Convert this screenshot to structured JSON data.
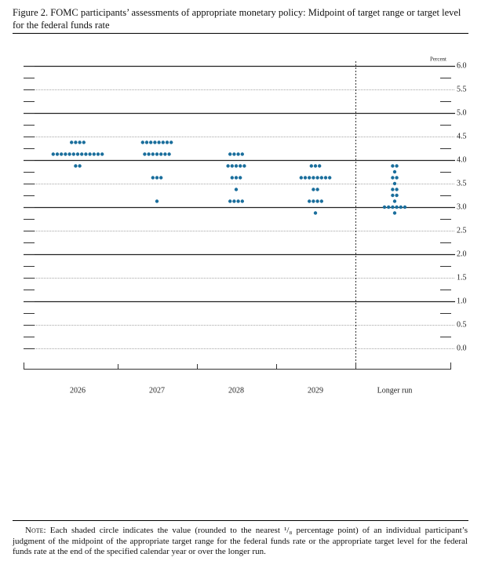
{
  "chart_data": {
    "type": "dot_plot",
    "title": "Figure 2. FOMC participants’ assessments of appropriate monetary policy: Midpoint of target range or target level for the federal funds rate",
    "y_unit_label": "Percent",
    "color": "#1a6e9c",
    "grid": true,
    "ylim": [
      0,
      6
    ],
    "yticks": [
      {
        "value": 0,
        "label": "0.0"
      },
      {
        "value": 0.5,
        "label": "0.5"
      },
      {
        "value": 1,
        "label": "1.0"
      },
      {
        "value": 1.5,
        "label": "1.5"
      },
      {
        "value": 2,
        "label": "2.0"
      },
      {
        "value": 2.5,
        "label": "2.5"
      },
      {
        "value": 3,
        "label": "3.0"
      },
      {
        "value": 3.5,
        "label": "3.5"
      },
      {
        "value": 4,
        "label": "4.0"
      },
      {
        "value": 4.5,
        "label": "4.5"
      },
      {
        "value": 5,
        "label": "5.0"
      },
      {
        "value": 5.5,
        "label": "5.5"
      },
      {
        "value": 6,
        "label": "6.0"
      }
    ],
    "minor_yticks": [
      0.25,
      0.75,
      1.25,
      1.75,
      2.25,
      2.75,
      3.25,
      3.75,
      4.25,
      4.75,
      5.25,
      5.75
    ],
    "categories": [
      "2026",
      "2027",
      "2028",
      "2029",
      "Longer run"
    ],
    "groups": [
      {
        "levels": [
          {
            "value": 4.375,
            "count": 4
          },
          {
            "value": 4.125,
            "count": 13
          },
          {
            "value": 3.875,
            "count": 2
          }
        ]
      },
      {
        "levels": [
          {
            "value": 4.375,
            "count": 8
          },
          {
            "value": 4.125,
            "count": 7
          },
          {
            "value": 3.625,
            "count": 3
          },
          {
            "value": 3.125,
            "count": 1
          }
        ]
      },
      {
        "levels": [
          {
            "value": 4.125,
            "count": 4
          },
          {
            "value": 3.875,
            "count": 5
          },
          {
            "value": 3.625,
            "count": 3
          },
          {
            "value": 3.375,
            "count": 1
          },
          {
            "value": 3.125,
            "count": 4
          }
        ]
      },
      {
        "levels": [
          {
            "value": 3.875,
            "count": 3
          },
          {
            "value": 3.625,
            "count": 8
          },
          {
            "value": 3.375,
            "count": 2
          },
          {
            "value": 3.125,
            "count": 4
          },
          {
            "value": 2.875,
            "count": 1
          }
        ]
      },
      {
        "levels": [
          {
            "value": 3.875,
            "count": 2
          },
          {
            "value": 3.75,
            "count": 1
          },
          {
            "value": 3.625,
            "count": 2
          },
          {
            "value": 3.5,
            "count": 1
          },
          {
            "value": 3.375,
            "count": 2
          },
          {
            "value": 3.25,
            "count": 2
          },
          {
            "value": 3.125,
            "count": 1
          },
          {
            "value": 3,
            "count": 6
          },
          {
            "value": 2.875,
            "count": 1
          }
        ]
      }
    ],
    "note_label": "Note:",
    "note": "Each shaded circle indicates the value (rounded to the nearest ¹/₈ percentage point) of an individual participant’s judgment of the midpoint of the appropriate target range for the federal funds rate or the appropriate target level for the federal funds rate at the end of the specified calendar year or over the longer run."
  }
}
